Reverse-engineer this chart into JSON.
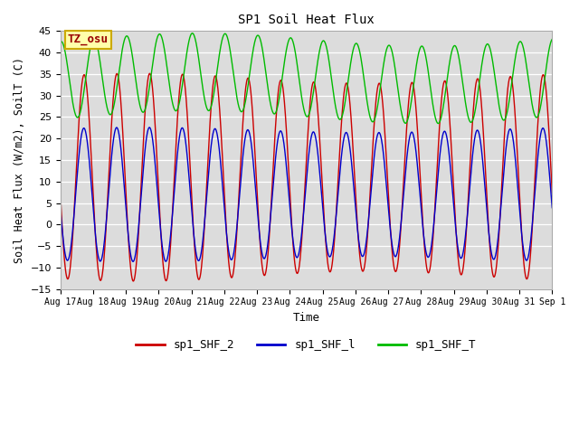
{
  "title": "SP1 Soil Heat Flux",
  "ylabel": "Soil Heat Flux (W/m2), SoilT (C)",
  "xlabel": "Time",
  "ylim": [
    -15,
    45
  ],
  "yticks": [
    -15,
    -10,
    -5,
    0,
    5,
    10,
    15,
    20,
    25,
    30,
    35,
    40,
    45
  ],
  "background_color": "#dcdcdc",
  "fig_background": "#ffffff",
  "legend_entries": [
    "sp1_SHF_2",
    "sp1_SHF_l",
    "sp1_SHF_T"
  ],
  "line_colors": [
    "#cc0000",
    "#0000cc",
    "#00bb00"
  ],
  "tz_label": "TZ_osu",
  "tz_box_color": "#ffffaa",
  "tz_text_color": "#990000",
  "tz_border_color": "#ccaa00",
  "n_days": 15,
  "xtick_labels": [
    "Aug 17",
    "Aug 18",
    "Aug 19",
    "Aug 20",
    "Aug 21",
    "Aug 22",
    "Aug 23",
    "Aug 24",
    "Aug 25",
    "Aug 26",
    "Aug 27",
    "Aug 28",
    "Aug 29",
    "Aug 30",
    "Aug 31",
    "Sep 1"
  ]
}
